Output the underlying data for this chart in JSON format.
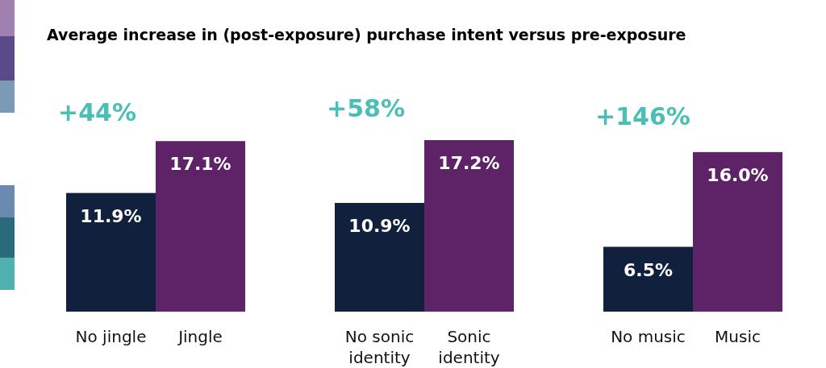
{
  "chart_data": {
    "type": "bar",
    "title": "Average increase in (post-exposure) purchase intent versus pre-exposure",
    "categories": [
      "No jingle",
      "Jingle",
      "No sonic identity",
      "Sonic identity",
      "No music",
      "Music"
    ],
    "values": [
      11.9,
      17.1,
      10.9,
      17.2,
      6.5,
      16.0
    ],
    "colors": [
      "#11213d",
      "#5e2366",
      "#11213d",
      "#5e2366",
      "#11213d",
      "#5e2366"
    ],
    "value_labels": [
      "11.9%",
      "17.1%",
      "10.9%",
      "17.2%",
      "6.5%",
      "16.0%"
    ],
    "annotations": [
      "+44%",
      "+58%",
      "+146%"
    ]
  }
}
